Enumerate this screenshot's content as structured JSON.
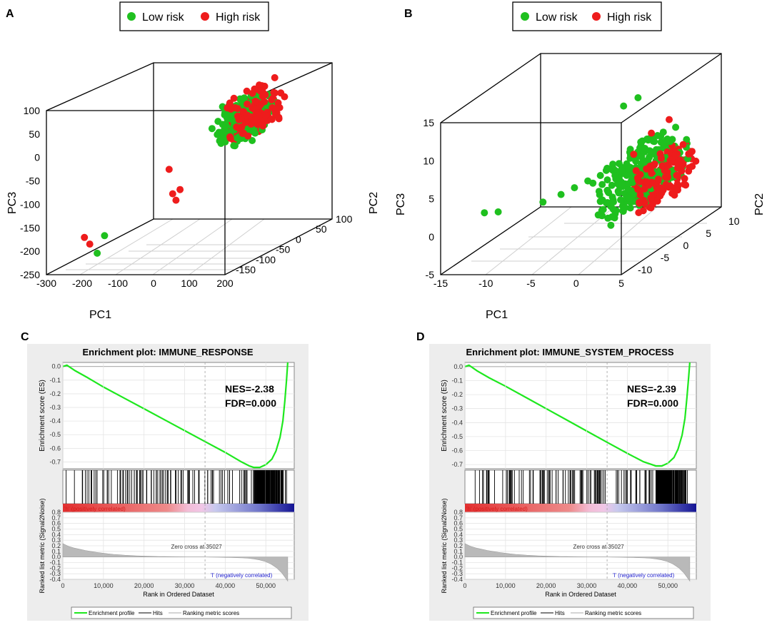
{
  "panels": {
    "A": {
      "letter": "A"
    },
    "B": {
      "letter": "B"
    },
    "C": {
      "letter": "C"
    },
    "D": {
      "letter": "D"
    }
  },
  "chart_data": [
    {
      "type": "scatter",
      "id": "A",
      "dims": 3,
      "legend": [
        {
          "label": "Low risk",
          "color": "#1fc01f"
        },
        {
          "label": "High risk",
          "color": "#ee1c1c"
        }
      ],
      "xlabel": "PC1",
      "ylabel": "PC2",
      "zlabel": "PC3",
      "x_ticks": [
        "-300",
        "-200",
        "-100",
        "0",
        "100",
        "200"
      ],
      "y_ticks": [
        "-150",
        "-100",
        "-50",
        "0",
        "50",
        "100"
      ],
      "z_ticks": [
        "-250",
        "-200",
        "-150",
        "-100",
        "-50",
        "0",
        "50",
        "100"
      ],
      "xlim": [
        -300,
        200
      ],
      "ylim": [
        -180,
        100
      ],
      "zlim": [
        -260,
        110
      ],
      "series": [
        {
          "name": "Low risk",
          "color": "#1fc01f",
          "cluster": {
            "x": [
              60,
              160
            ],
            "y": [
              -90,
              10
            ],
            "z": [
              -30,
              90
            ],
            "count": 200
          },
          "points": [
            [
              -180,
              -140,
              -190
            ],
            [
              -190,
              -150,
              -225
            ]
          ]
        },
        {
          "name": "High risk",
          "color": "#ee1c1c",
          "cluster": {
            "x": [
              60,
              180
            ],
            "y": [
              -80,
              20
            ],
            "z": [
              -20,
              100
            ],
            "count": 150
          },
          "points": [
            [
              -10,
              -130,
              -45
            ],
            [
              0,
              -130,
              -100
            ],
            [
              -215,
              -160,
              -185
            ],
            [
              -200,
              -160,
              -200
            ],
            [
              10,
              -120,
              -95
            ],
            [
              20,
              -140,
              -110
            ]
          ]
        }
      ]
    },
    {
      "type": "scatter",
      "id": "B",
      "dims": 3,
      "legend": [
        {
          "label": "Low risk",
          "color": "#1fc01f"
        },
        {
          "label": "High risk",
          "color": "#ee1c1c"
        }
      ],
      "xlabel": "PC1",
      "ylabel": "PC2",
      "zlabel": "PC3",
      "x_ticks": [
        "-15",
        "-10",
        "-5",
        "0",
        "5"
      ],
      "y_ticks": [
        "-10",
        "-5",
        "0",
        "5",
        "10"
      ],
      "z_ticks": [
        "-5",
        "0",
        "5",
        "10",
        "15"
      ],
      "xlim": [
        -15,
        5
      ],
      "ylim": [
        -13,
        10
      ],
      "zlim": [
        -5,
        15
      ],
      "series": [
        {
          "name": "Low risk",
          "color": "#1fc01f",
          "cluster": {
            "x": [
              -2,
              5
            ],
            "y": [
              -8,
              6
            ],
            "z": [
              -1,
              8
            ],
            "count": 260
          },
          "points": [
            [
              -14,
              -5,
              0
            ],
            [
              -12,
              -6,
              0.5
            ],
            [
              -8,
              -4,
              1
            ],
            [
              -6,
              -4,
              2
            ],
            [
              -5,
              -3,
              2.5
            ],
            [
              -1,
              0,
              12
            ],
            [
              3,
              -5,
              15
            ],
            [
              -4,
              -2,
              3
            ]
          ]
        },
        {
          "name": "High risk",
          "color": "#ee1c1c",
          "cluster": {
            "x": [
              2,
              5
            ],
            "y": [
              -6,
              5
            ],
            "z": [
              -1,
              7
            ],
            "count": 160
          },
          "points": [
            [
              4,
              -4,
              10
            ],
            [
              5,
              -2,
              11
            ],
            [
              3,
              -6,
              8
            ]
          ]
        }
      ]
    },
    {
      "type": "line",
      "id": "C",
      "title": "Enrichment plot: IMMUNE_RESPONSE",
      "ylabel": "Enrichment score (ES)",
      "ylabel2": "Ranked list metric (Signal2Noise)",
      "xlabel": "Rank in Ordered Dataset",
      "es_ticks": [
        "0.0",
        "-0.1",
        "-0.2",
        "-0.3",
        "-0.4",
        "-0.5",
        "-0.6",
        "-0.7"
      ],
      "es_ylim": [
        -0.75,
        0.03
      ],
      "metric_ticks": [
        "0.8",
        "0.7",
        "0.6",
        "0.5",
        "0.4",
        "0.3",
        "0.2",
        "0.1",
        "0.0",
        "-0.1",
        "-0.2",
        "-0.3",
        "-0.4"
      ],
      "metric_ylim": [
        -0.4,
        0.8
      ],
      "x_ticks": [
        "0",
        "10,000",
        "20,000",
        "30,000",
        "40,000",
        "50,000"
      ],
      "xlim": [
        0,
        57000
      ],
      "nes_label": "NES=-2.38",
      "fdr_label": "FDR=0.000",
      "pos_label": "'h' (positively correlated)",
      "neg_label": "'l' (negatively correlated)",
      "zero_cross_label": "Zero cross at 35027",
      "zero_cross": 35027,
      "legend": [
        "Enrichment profile",
        "Hits",
        "Ranking metric scores"
      ],
      "es_curve": {
        "x": [
          0,
          1000,
          3000,
          6000,
          10000,
          15000,
          20000,
          25000,
          30000,
          35000,
          40000,
          44000,
          46000,
          47000,
          48500,
          50000,
          51500,
          52500,
          53500,
          54200,
          54700,
          55100,
          55400
        ],
        "y": [
          0.0,
          0.01,
          -0.03,
          -0.08,
          -0.15,
          -0.23,
          -0.31,
          -0.39,
          -0.47,
          -0.55,
          -0.63,
          -0.7,
          -0.73,
          -0.74,
          -0.74,
          -0.72,
          -0.68,
          -0.62,
          -0.52,
          -0.4,
          -0.25,
          -0.1,
          0.03
        ]
      }
    },
    {
      "type": "line",
      "id": "D",
      "title": "Enrichment plot: IMMUNE_SYSTEM_PROCESS",
      "ylabel": "Enrichment score (ES)",
      "ylabel2": "Ranked list metric (Signal2Noise)",
      "xlabel": "Rank in Ordered Dataset",
      "es_ticks": [
        "0.0",
        "-0.1",
        "-0.2",
        "-0.3",
        "-0.4",
        "-0.5",
        "-0.6",
        "-0.7"
      ],
      "es_ylim": [
        -0.73,
        0.03
      ],
      "metric_ticks": [
        "0.8",
        "0.7",
        "0.6",
        "0.5",
        "0.4",
        "0.3",
        "0.2",
        "0.1",
        "0.0",
        "-0.1",
        "-0.2",
        "-0.3",
        "-0.4"
      ],
      "metric_ylim": [
        -0.4,
        0.8
      ],
      "x_ticks": [
        "0",
        "10,000",
        "20,000",
        "30,000",
        "40,000",
        "50,000"
      ],
      "xlim": [
        0,
        57000
      ],
      "nes_label": "NES=-2.39",
      "fdr_label": "FDR=0.000",
      "pos_label": "'h' (positively correlated)",
      "neg_label": "'l' (negatively correlated)",
      "zero_cross_label": "Zero cross at 35027",
      "zero_cross": 35027,
      "legend": [
        "Enrichment profile",
        "Hits",
        "Ranking metric scores"
      ],
      "es_curve": {
        "x": [
          0,
          1000,
          3000,
          6000,
          10000,
          15000,
          20000,
          25000,
          30000,
          35000,
          40000,
          44000,
          46000,
          47000,
          48500,
          50000,
          51500,
          52500,
          53500,
          54200,
          54700,
          55100,
          55400
        ],
        "y": [
          0.0,
          0.01,
          -0.03,
          -0.08,
          -0.14,
          -0.22,
          -0.3,
          -0.38,
          -0.46,
          -0.54,
          -0.62,
          -0.68,
          -0.7,
          -0.71,
          -0.71,
          -0.69,
          -0.65,
          -0.59,
          -0.49,
          -0.37,
          -0.22,
          -0.08,
          0.03
        ]
      }
    }
  ]
}
